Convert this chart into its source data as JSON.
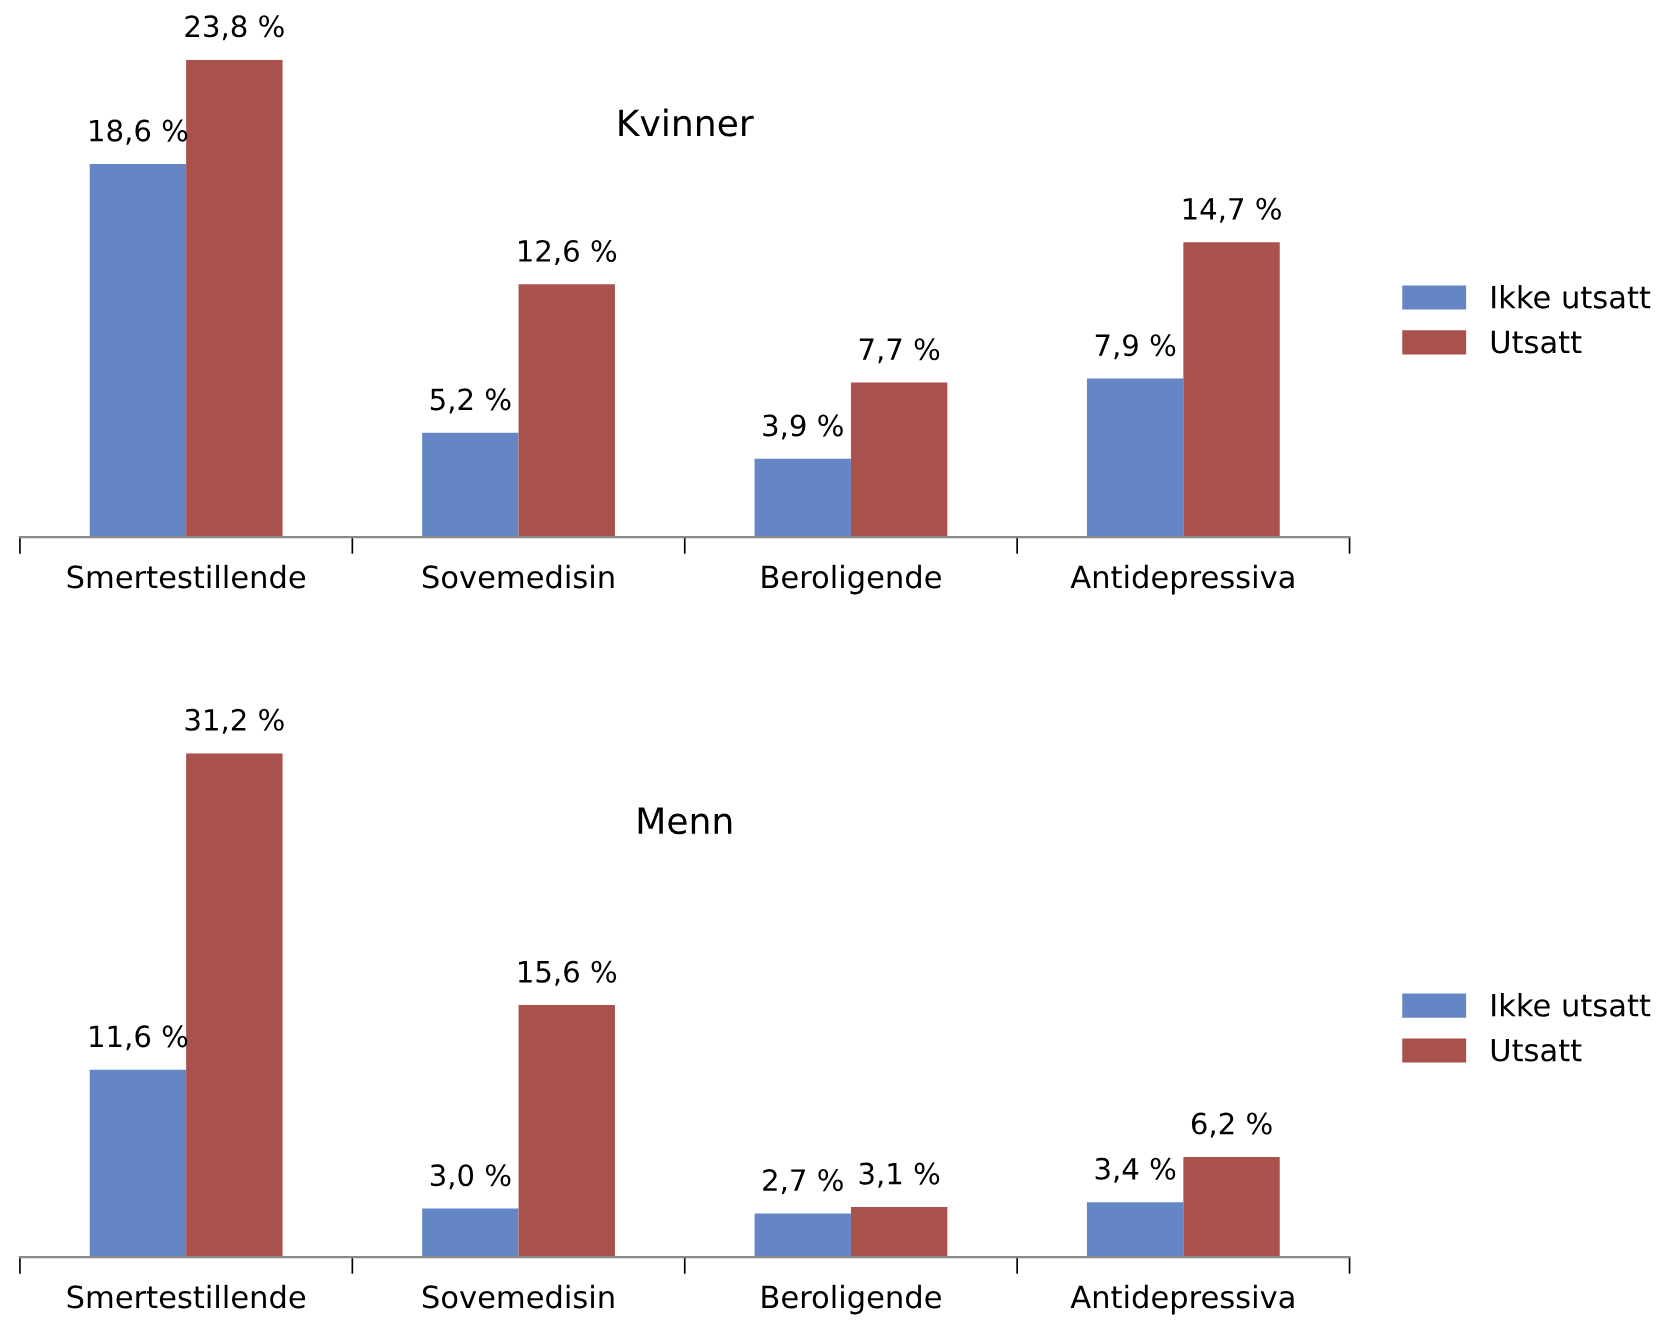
{
  "chart_data": [
    {
      "type": "bar",
      "title": "Kvinner",
      "categories": [
        "Smertestillende",
        "Sovemedisin",
        "Beroligende",
        "Antidepressiva"
      ],
      "legend": "right",
      "series": [
        {
          "name": "Ikke utsatt",
          "color": "#6586c4",
          "values": [
            18.6,
            5.2,
            3.9,
            7.9
          ],
          "value_labels": [
            "18,6 %",
            "5,2 %",
            "3,9 %",
            "7,9 %"
          ]
        },
        {
          "name": "Utsatt",
          "color": "#a9514c",
          "values": [
            23.8,
            12.6,
            7.7,
            14.7
          ],
          "value_labels": [
            "23,8 %",
            "12,6 %",
            "7,7 %",
            "14,7 %"
          ]
        }
      ]
    },
    {
      "type": "bar",
      "title": "Menn",
      "categories": [
        "Smertestillende",
        "Sovemedisin",
        "Beroligende",
        "Antidepressiva"
      ],
      "legend": "right",
      "series": [
        {
          "name": "Ikke utsatt",
          "color": "#6586c4",
          "values": [
            11.6,
            3.0,
            2.7,
            3.4
          ],
          "value_labels": [
            "11,6 %",
            "3,0 %",
            "2,7 %",
            "3,4 %"
          ]
        },
        {
          "name": "Utsatt",
          "color": "#a9514c",
          "values": [
            31.2,
            15.6,
            3.1,
            6.2
          ],
          "value_labels": [
            "31,2 %",
            "15,6 %",
            "3,1 %",
            "6,2 %"
          ]
        }
      ]
    }
  ]
}
